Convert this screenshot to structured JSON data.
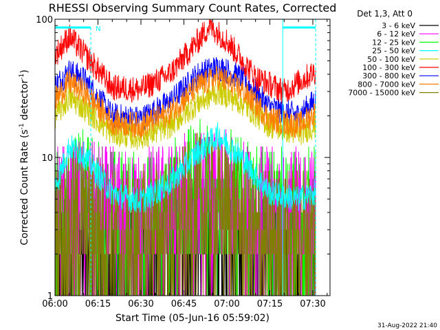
{
  "chart_data": {
    "type": "line",
    "title": "RHESSI Observing Summary Count Rates, Corrected",
    "xlabel": "Start Time (05-Jun-16 05:59:02)",
    "ylabel_main": "Corrected Count Rate (s",
    "ylabel_sup1": "-1",
    "ylabel_mid": " detector",
    "ylabel_sup2": "-1",
    "ylabel_end": ")",
    "y_scale": "log",
    "ylim": [
      1,
      100
    ],
    "xlim_minutes": [
      0,
      96
    ],
    "y_tick_labels": [
      "1",
      "10",
      "100"
    ],
    "x_tick_labels": [
      "06:00",
      "06:15",
      "06:30",
      "06:45",
      "07:00",
      "07:15",
      "07:30"
    ],
    "x_tick_minutes": [
      0,
      15,
      30,
      45,
      60,
      75,
      90
    ],
    "legend_title": "Det 1,3, Att 0",
    "legend_placement": "right",
    "night_marker_label": "N",
    "footer_date": "31-Aug-2022 21:40",
    "series": [
      {
        "name": "3 - 6 keV",
        "color": "#000000",
        "x_minutes": [
          0,
          10,
          20,
          30,
          40,
          50,
          60,
          70,
          80,
          91
        ],
        "values": [
          1.6,
          1.8,
          1.7,
          1.5,
          1.9,
          2.4,
          2.0,
          1.5,
          1.5,
          1.6
        ]
      },
      {
        "name": "6 - 12 keV",
        "color": "#ff00ff",
        "x_minutes": [
          0,
          10,
          20,
          30,
          40,
          50,
          60,
          70,
          80,
          91
        ],
        "values": [
          3.6,
          4.0,
          3.4,
          3.3,
          3.8,
          4.6,
          4.4,
          3.5,
          3.4,
          3.6
        ]
      },
      {
        "name": "12 - 25 keV",
        "color": "#00ff00",
        "x_minutes": [
          0,
          10,
          20,
          30,
          40,
          50,
          60,
          70,
          80,
          91
        ],
        "values": [
          3.6,
          4.6,
          3.5,
          3.2,
          3.8,
          5.4,
          5.0,
          3.4,
          3.3,
          3.6
        ]
      },
      {
        "name": "25 - 50 keV",
        "color": "#00ffff",
        "x_minutes": [
          0,
          5,
          10,
          20,
          30,
          40,
          50,
          57,
          65,
          75,
          85,
          91
        ],
        "values": [
          6.0,
          12.0,
          10.5,
          5.5,
          4.8,
          6.5,
          11.0,
          14.5,
          10.0,
          5.5,
          5.0,
          5.5
        ]
      },
      {
        "name": "50 - 100 keV",
        "color": "#cccc00",
        "x_minutes": [
          0,
          5,
          10,
          20,
          30,
          40,
          50,
          57,
          65,
          75,
          85,
          91
        ],
        "values": [
          20,
          27,
          23,
          15,
          14,
          17,
          25,
          30,
          25,
          17,
          15,
          17
        ]
      },
      {
        "name": "100 - 300 keV",
        "color": "#ff0000",
        "x_minutes": [
          0,
          5,
          10,
          20,
          30,
          40,
          50,
          54,
          60,
          70,
          80,
          91
        ],
        "values": [
          55,
          75,
          57,
          32,
          31,
          40,
          70,
          90,
          70,
          38,
          30,
          42
        ]
      },
      {
        "name": "300 - 800 keV",
        "color": "#0000ff",
        "x_minutes": [
          0,
          5,
          10,
          20,
          30,
          40,
          50,
          57,
          65,
          75,
          85,
          91
        ],
        "values": [
          33,
          42,
          37,
          20,
          19,
          25,
          40,
          45,
          38,
          23,
          20,
          26
        ]
      },
      {
        "name": "800 - 7000 keV",
        "color": "#ff8000",
        "x_minutes": [
          0,
          5,
          10,
          20,
          30,
          40,
          50,
          57,
          65,
          75,
          85,
          91
        ],
        "values": [
          26,
          35,
          30,
          18,
          17,
          21,
          33,
          38,
          31,
          19,
          17,
          21
        ]
      },
      {
        "name": "7000 - 15000 keV",
        "color": "#808000",
        "x_minutes": [
          0,
          10,
          20,
          30,
          40,
          50,
          60,
          70,
          80,
          91
        ],
        "values": [
          2.7,
          3.3,
          2.5,
          2.4,
          2.9,
          4.3,
          4.0,
          2.5,
          2.4,
          2.7
        ]
      }
    ]
  }
}
